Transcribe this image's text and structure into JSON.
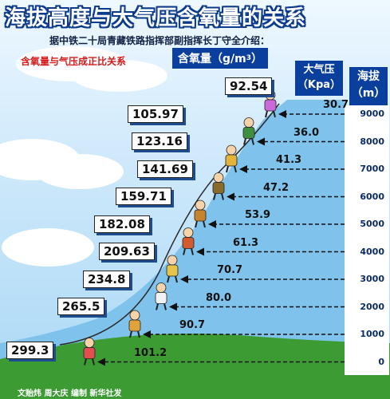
{
  "title": "海拔高度与大气压含氧量的关系",
  "subtitle": "据中铁二十局青藏铁路指挥部副指挥长丁守全介绍：",
  "relation_note": "含氧量与气压成正比关系",
  "headers": {
    "oxygen": "含氧量（g/m",
    "oxygen_exp": "3",
    "oxygen_end": "）",
    "pressure_1": "大气压",
    "pressure_2": "（Kpa）",
    "altitude_1": "海拔",
    "altitude_2": "（m）"
  },
  "credit": "文贻炜 周大庆 编制 新华社发",
  "chart_data": {
    "type": "table",
    "columns": [
      "海拔（m）",
      "大气压（Kpa）",
      "含氧量（g/m3）"
    ],
    "altitude": [
      9000,
      8000,
      7000,
      6000,
      5000,
      4000,
      3000,
      2000,
      1000,
      0
    ],
    "altitude_labels": [
      "9000",
      "8000",
      "7000",
      "6000",
      "5000",
      "4000",
      "3000",
      "2000",
      "1000",
      "0"
    ],
    "pressure": [
      "30.7",
      "36.0",
      "41.3",
      "47.2",
      "53.9",
      "61.3",
      "70.7",
      "80.0",
      "90.7",
      "101.2"
    ],
    "oxygen": [
      "92.54",
      "105.97",
      "123.16",
      "141.69",
      "159.71",
      "182.08",
      "209.63",
      "234.8",
      "265.5",
      "299.3"
    ]
  }
}
